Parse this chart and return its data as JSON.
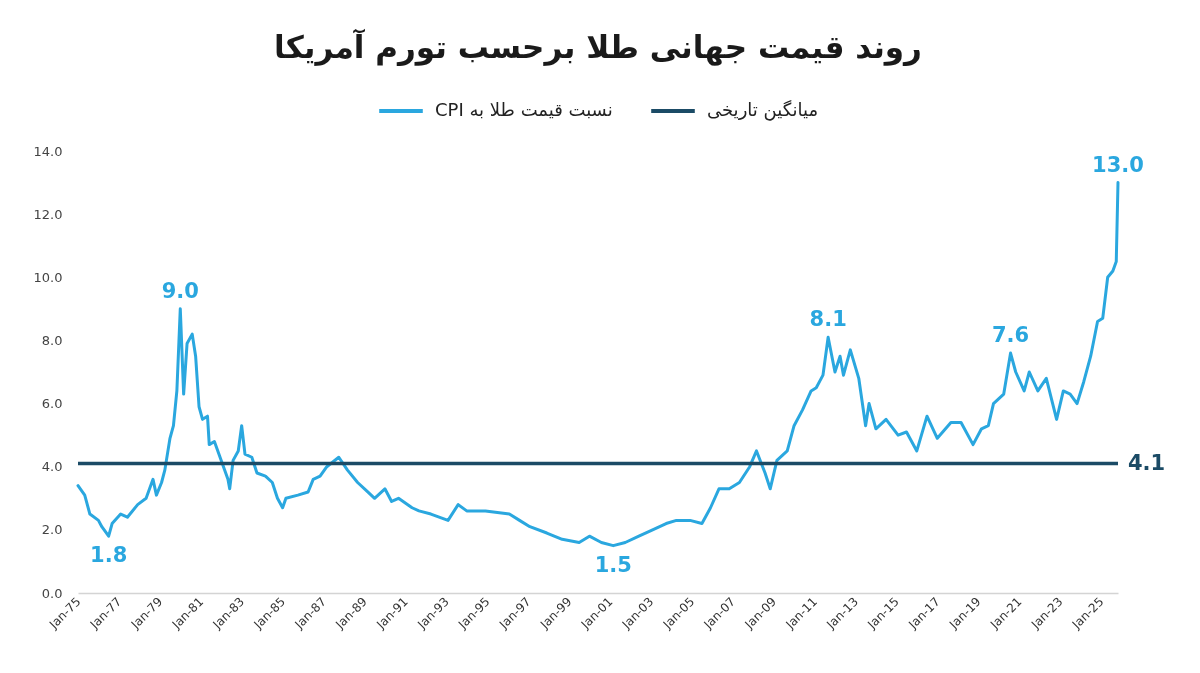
{
  "chart_data": {
    "type": "line",
    "title": "روند قیمت جهانی طلا برحسب تورم آمریکا",
    "legend": "top",
    "x": [
      "1975-01",
      "1975-05",
      "1975-08",
      "1976-01",
      "1976-03",
      "1976-07",
      "1976-09",
      "1977-02",
      "1977-06",
      "1977-12",
      "1978-05",
      "1978-09",
      "1978-11",
      "1979-02",
      "1979-04",
      "1979-07",
      "1979-09",
      "1979-11",
      "1980-01",
      "1980-03",
      "1980-05",
      "1980-08",
      "1980-10",
      "1980-12",
      "1981-02",
      "1981-05",
      "1981-06",
      "1981-09",
      "1982-01",
      "1982-05",
      "1982-06",
      "1982-08",
      "1982-11",
      "1983-01",
      "1983-03",
      "1983-07",
      "1983-10",
      "1984-03",
      "1984-07",
      "1984-10",
      "1985-01",
      "1985-03",
      "1985-10",
      "1986-04",
      "1986-07",
      "1986-11",
      "1987-03",
      "1987-10",
      "1988-03",
      "1988-09",
      "1989-03",
      "1989-07",
      "1990-01",
      "1990-05",
      "1990-09",
      "1991-05",
      "1991-09",
      "1992-04",
      "1993-02",
      "1993-08",
      "1994-01",
      "1994-12",
      "1996-02",
      "1996-08",
      "1997-02",
      "1997-12",
      "1998-09",
      "1999-07",
      "2000-01",
      "2000-08",
      "2001-03",
      "2001-10",
      "2002-06",
      "2003-02",
      "2003-10",
      "2004-04",
      "2004-12",
      "2005-07",
      "2005-12",
      "2006-05",
      "2006-11",
      "2007-05",
      "2007-11",
      "2008-03",
      "2008-08",
      "2008-11",
      "2009-03",
      "2009-09",
      "2010-01",
      "2010-06",
      "2010-11",
      "2011-02",
      "2011-06",
      "2011-09",
      "2012-01",
      "2012-04",
      "2012-06",
      "2012-10",
      "2013-03",
      "2013-07",
      "2013-09",
      "2014-01",
      "2014-07",
      "2015-02",
      "2015-07",
      "2016-01",
      "2016-07",
      "2017-01",
      "2017-09",
      "2018-03",
      "2018-10",
      "2019-03",
      "2019-07",
      "2019-10",
      "2020-04",
      "2020-08",
      "2020-11",
      "2021-04",
      "2021-07",
      "2021-12",
      "2022-05",
      "2022-11",
      "2023-03",
      "2023-07",
      "2023-11",
      "2024-03",
      "2024-07",
      "2024-11",
      "2025-02",
      "2025-05",
      "2025-08",
      "2025-10",
      "2025-11"
    ],
    "xlim": [
      "1975-01",
      "2025-11"
    ],
    "xticks": [
      {
        "value": "1975-01",
        "label": "Jan-75"
      },
      {
        "value": "1977-01",
        "label": "Jan-77"
      },
      {
        "value": "1979-01",
        "label": "Jan-79"
      },
      {
        "value": "1981-01",
        "label": "Jan-81"
      },
      {
        "value": "1983-01",
        "label": "Jan-83"
      },
      {
        "value": "1985-01",
        "label": "Jan-85"
      },
      {
        "value": "1987-01",
        "label": "Jan-87"
      },
      {
        "value": "1989-01",
        "label": "Jan-89"
      },
      {
        "value": "1991-01",
        "label": "Jan-91"
      },
      {
        "value": "1993-01",
        "label": "Jan-93"
      },
      {
        "value": "1995-01",
        "label": "Jan-95"
      },
      {
        "value": "1997-01",
        "label": "Jan-97"
      },
      {
        "value": "1999-01",
        "label": "Jan-99"
      },
      {
        "value": "2001-01",
        "label": "Jan-01"
      },
      {
        "value": "2003-01",
        "label": "Jan-03"
      },
      {
        "value": "2005-01",
        "label": "Jan-05"
      },
      {
        "value": "2007-01",
        "label": "Jan-07"
      },
      {
        "value": "2009-01",
        "label": "Jan-09"
      },
      {
        "value": "2011-01",
        "label": "Jan-11"
      },
      {
        "value": "2013-01",
        "label": "Jan-13"
      },
      {
        "value": "2015-01",
        "label": "Jan-15"
      },
      {
        "value": "2017-01",
        "label": "Jan-17"
      },
      {
        "value": "2019-01",
        "label": "Jan-19"
      },
      {
        "value": "2021-01",
        "label": "Jan-21"
      },
      {
        "value": "2023-01",
        "label": "Jan-23"
      },
      {
        "value": "2025-01",
        "label": "Jan-25"
      }
    ],
    "ylim": [
      0,
      14
    ],
    "yticks": [
      {
        "value": 0,
        "label": "0.0"
      },
      {
        "value": 2,
        "label": "2.0"
      },
      {
        "value": 4,
        "label": "4.0"
      },
      {
        "value": 6,
        "label": "6.0"
      },
      {
        "value": 8,
        "label": "8.0"
      },
      {
        "value": 10,
        "label": "10.0"
      },
      {
        "value": 12,
        "label": "12.0"
      },
      {
        "value": 14,
        "label": "14.0"
      }
    ],
    "series": [
      {
        "name": "نسبت قیمت طلا به CPI",
        "color": "#2aa7df",
        "values": [
          3.4,
          3.1,
          2.5,
          2.3,
          2.1,
          1.8,
          2.2,
          2.5,
          2.4,
          2.8,
          3.0,
          3.6,
          3.1,
          3.5,
          3.9,
          4.9,
          5.3,
          6.4,
          9.0,
          6.3,
          7.9,
          8.2,
          7.5,
          5.9,
          5.5,
          5.6,
          4.7,
          4.8,
          4.2,
          3.6,
          3.3,
          4.2,
          4.5,
          5.3,
          4.4,
          4.3,
          3.8,
          3.7,
          3.5,
          3.0,
          2.7,
          3.0,
          3.1,
          3.2,
          3.6,
          3.7,
          4.0,
          4.3,
          3.9,
          3.5,
          3.2,
          3.0,
          3.3,
          2.9,
          3.0,
          2.7,
          2.6,
          2.5,
          2.3,
          2.8,
          2.6,
          2.6,
          2.5,
          2.3,
          2.1,
          1.9,
          1.7,
          1.6,
          1.8,
          1.6,
          1.5,
          1.6,
          1.8,
          2.0,
          2.2,
          2.3,
          2.3,
          2.2,
          2.7,
          3.3,
          3.3,
          3.5,
          4.0,
          4.5,
          3.8,
          3.3,
          4.2,
          4.5,
          5.3,
          5.8,
          6.4,
          6.5,
          6.9,
          8.1,
          7.0,
          7.5,
          6.9,
          7.7,
          6.8,
          5.3,
          6.0,
          5.2,
          5.5,
          5.0,
          5.1,
          4.5,
          5.6,
          4.9,
          5.4,
          5.4,
          4.7,
          5.2,
          5.3,
          6.0,
          6.3,
          7.6,
          7.0,
          6.4,
          7.0,
          6.4,
          6.8,
          5.5,
          6.4,
          6.3,
          6.0,
          6.7,
          7.5,
          8.6,
          8.7,
          10.0,
          10.2,
          10.5,
          13.0
        ],
        "value_labels": [
          null,
          null,
          null,
          null,
          null,
          "1.8",
          null,
          null,
          null,
          null,
          null,
          null,
          null,
          null,
          null,
          null,
          null,
          null,
          "9.0",
          null,
          null,
          null,
          null,
          null,
          null,
          null,
          null,
          null,
          null,
          null,
          null,
          null,
          null,
          null,
          null,
          null,
          null,
          null,
          null,
          null,
          null,
          null,
          null,
          null,
          null,
          null,
          null,
          null,
          null,
          null,
          null,
          null,
          null,
          null,
          null,
          null,
          null,
          null,
          null,
          null,
          null,
          null,
          null,
          null,
          null,
          null,
          null,
          null,
          null,
          null,
          "1.5",
          null,
          null,
          null,
          null,
          null,
          null,
          null,
          null,
          null,
          null,
          null,
          null,
          null,
          null,
          null,
          null,
          null,
          null,
          null,
          null,
          null,
          null,
          "8.1",
          null,
          null,
          null,
          null,
          null,
          null,
          null,
          null,
          null,
          null,
          null,
          null,
          null,
          null,
          null,
          null,
          null,
          null,
          null,
          null,
          null,
          "7.6",
          null,
          null,
          null,
          null,
          null,
          null,
          null,
          null,
          null,
          null,
          null,
          null,
          null,
          null,
          null,
          null,
          "13.0"
        ]
      }
    ],
    "ref_lines": [
      {
        "axis": "y",
        "value": 4.1,
        "label": "میانگین تاریخی",
        "color": "#1b4b66"
      }
    ],
    "annotations": [
      {
        "text": "4.1",
        "x": "2025-11",
        "y": 4.1
      }
    ]
  }
}
